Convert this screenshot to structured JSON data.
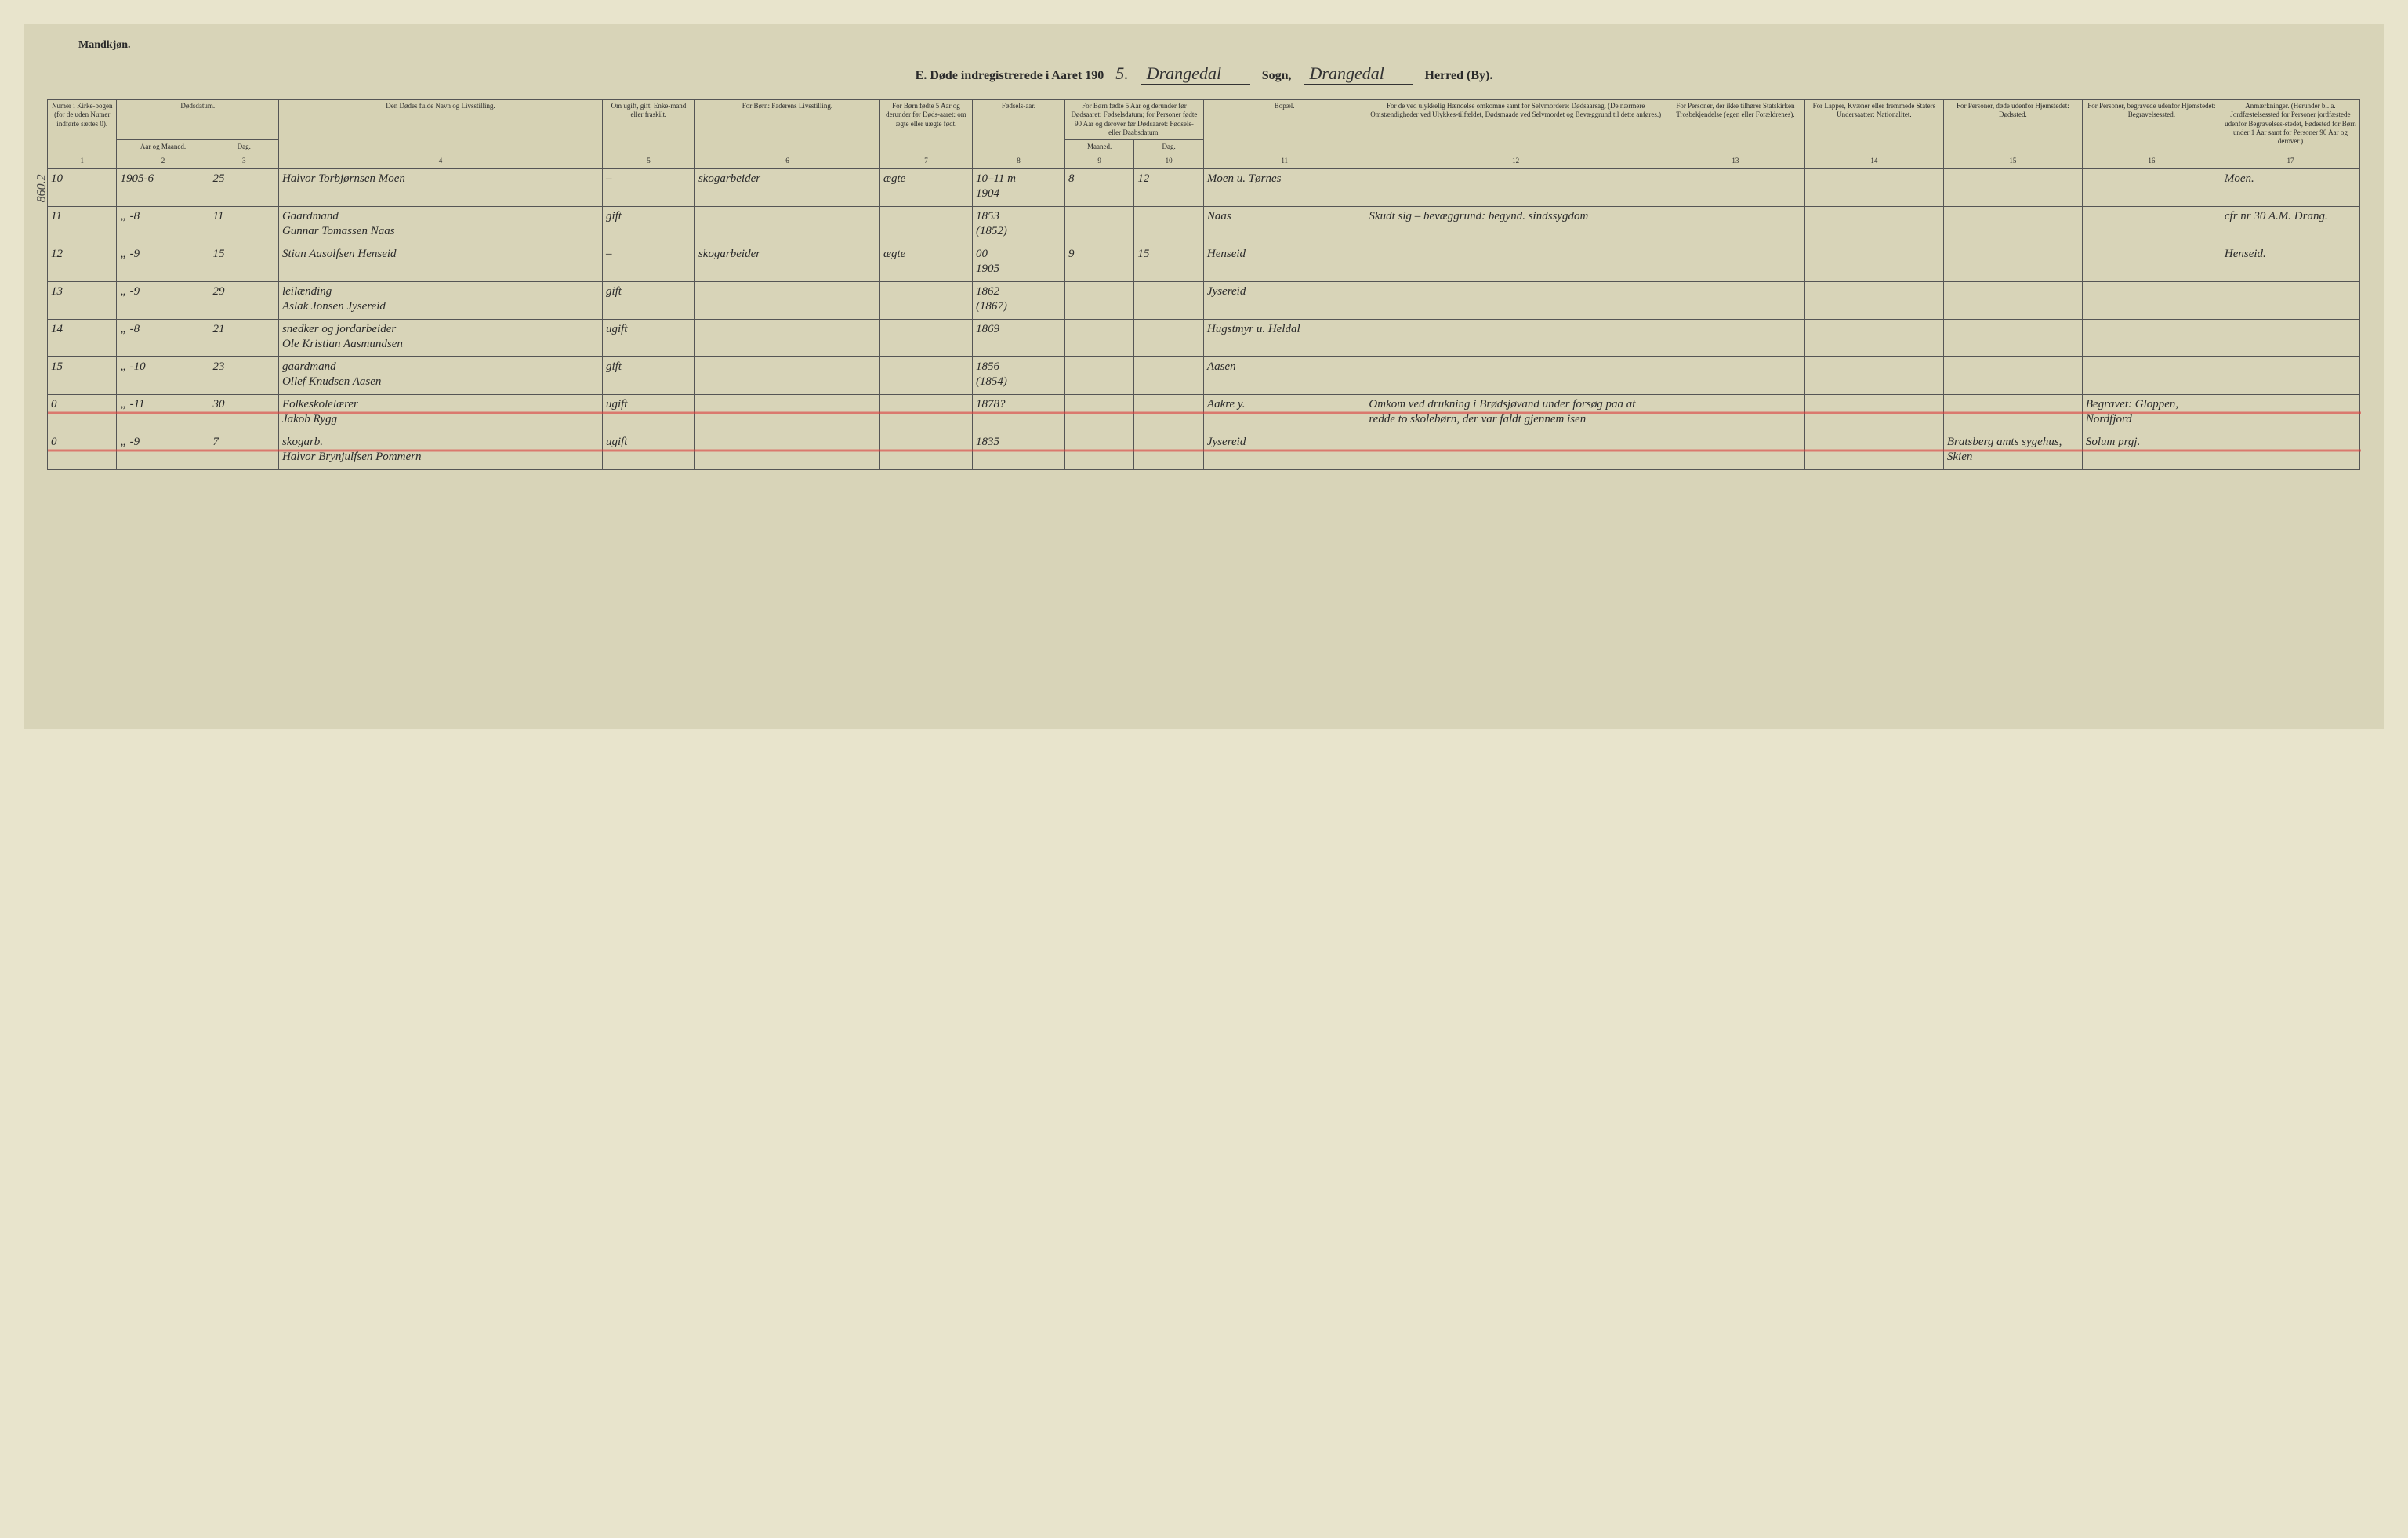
{
  "top": {
    "gender": "Mandkjøn."
  },
  "header": {
    "prefix": "E.  Døde indregistrerede i Aaret 190",
    "year_suffix": "5.",
    "sogn_value": "Drangedal",
    "sogn_label": "Sogn,",
    "herred_value": "Drangedal",
    "herred_label": "Herred (By)."
  },
  "margin_id": "860.2",
  "columns": {
    "c1": "Numer i Kirke-bogen (for de uden Numer indførte sættes 0).",
    "c2": "Dødsdatum.",
    "c2a": "Aar og Maaned.",
    "c2b": "Dag.",
    "c4": "Den Dødes fulde Navn og Livsstilling.",
    "c5": "Om ugift, gift, Enke-mand eller fraskilt.",
    "c6": "For Børn:\nFaderens Livsstilling.",
    "c7": "For Børn fødte 5 Aar og derunder før Døds-aaret: om ægte eller uægte født.",
    "c8": "Fødsels-aar.",
    "c9_10": "For Børn fødte 5 Aar og derunder før Dødsaaret: Fødselsdatum; for Personer fødte 90 Aar og derover før Dødsaaret: Fødsels- eller Daabsdatum.",
    "c9": "Maaned.",
    "c10": "Dag.",
    "c11": "Bopæl.",
    "c12": "For de ved ulykkelig Hændelse omkomne samt for Selvmordere: Dødsaarsag. (De nærmere Omstændigheder ved Ulykkes-tilfældet, Dødsmaade ved Selvmordet og Bevæggrund til dette anføres.)",
    "c13": "For Personer, der ikke tilhører Statskirken Trosbekjendelse (egen eller Forældrenes).",
    "c14": "For Lapper, Kvæner eller fremmede Staters Undersaatter: Nationalitet.",
    "c15": "For Personer, døde udenfor Hjemstedet: Dødssted.",
    "c16": "For Personer, begravede udenfor Hjemstedet: Begravelsessted.",
    "c17": "Anmærkninger. (Herunder bl. a. Jordfæstelsessted for Personer jordfæstede udenfor Begravelses-stedet, Fødested for Børn under 1 Aar samt for Personer 90 Aar og derover.)"
  },
  "col_nums": [
    "1",
    "2",
    "3",
    "4",
    "5",
    "6",
    "7",
    "8",
    "9",
    "10",
    "11",
    "12",
    "13",
    "14",
    "15",
    "16",
    "17"
  ],
  "rows": [
    {
      "num": "10",
      "ym": "1905-6",
      "day": "25",
      "name": "Halvor Torbjørnsen Moen",
      "status": "–",
      "father": "skogarbeider",
      "legit": "ægte",
      "birth": "1904",
      "bm": "8",
      "bd": "12",
      "marginal_top": "10–11 m",
      "resid": "Moen u. Tørnes",
      "cause": "",
      "c13": "",
      "c14": "",
      "c15": "",
      "c16": "",
      "anm": "Moen."
    },
    {
      "num": "11",
      "ym": "„ -8",
      "day": "11",
      "name": "Gaardmand\nGunnar Tomassen Naas",
      "status": "gift",
      "father": "",
      "legit": "",
      "birth": "1853\n(1852)",
      "bm": "",
      "bd": "",
      "resid": "Naas",
      "cause": "Skudt sig – bevæggrund: begynd. sindssygdom",
      "c13": "",
      "c14": "",
      "c15": "",
      "c16": "",
      "anm": "cfr nr 30 A.M. Drang."
    },
    {
      "num": "12",
      "ym": "„ -9",
      "day": "15",
      "name": "Stian Aasolfsen Henseid",
      "status": "–",
      "father": "skogarbeider",
      "legit": "ægte",
      "birth": "1905",
      "bm": "9",
      "bd": "15",
      "marginal_top": "00",
      "resid": "Henseid",
      "cause": "",
      "c13": "",
      "c14": "",
      "c15": "",
      "c16": "",
      "anm": "Henseid."
    },
    {
      "num": "13",
      "ym": "„ -9",
      "day": "29",
      "name": "leilænding\nAslak Jonsen Jysereid",
      "status": "gift",
      "father": "",
      "legit": "",
      "birth": "1862\n(1867)",
      "bm": "",
      "bd": "",
      "resid": "Jysereid",
      "cause": "",
      "c13": "",
      "c14": "",
      "c15": "",
      "c16": "",
      "anm": ""
    },
    {
      "num": "14",
      "ym": "„ -8",
      "day": "21",
      "name": "snedker og jordarbeider\nOle Kristian Aasmundsen",
      "status": "ugift",
      "father": "",
      "legit": "",
      "birth": "1869",
      "bm": "",
      "bd": "",
      "resid": "Hugstmyr u. Heldal",
      "cause": "",
      "c13": "",
      "c14": "",
      "c15": "",
      "c16": "",
      "anm": ""
    },
    {
      "num": "15",
      "ym": "„ -10",
      "day": "23",
      "name": "gaardmand\nOllef Knudsen Aasen",
      "status": "gift",
      "father": "",
      "legit": "",
      "birth": "1856\n(1854)",
      "bm": "",
      "bd": "",
      "resid": "Aasen",
      "cause": "",
      "c13": "",
      "c14": "",
      "c15": "",
      "c16": "",
      "anm": ""
    },
    {
      "num": "0",
      "ym": "„ -11",
      "day": "30",
      "name": "Folkeskolelærer\nJakob Rygg",
      "status": "ugift",
      "father": "",
      "legit": "",
      "birth": "1878?",
      "bm": "",
      "bd": "",
      "resid": "Aakre y.",
      "cause": "Omkom ved drukning i Brødsjøvand under forsøg paa at redde to skolebørn, der var faldt gjennem isen",
      "c13": "",
      "c14": "",
      "c15": "",
      "c16": "Begravet: Gloppen, Nordfjord",
      "anm": "",
      "struck": true
    },
    {
      "num": "0",
      "ym": "„ -9",
      "day": "7",
      "name": "skogarb.\nHalvor Brynjulfsen Pommern",
      "status": "ugift",
      "father": "",
      "legit": "",
      "birth": "1835",
      "bm": "",
      "bd": "",
      "resid": "Jysereid",
      "cause": "",
      "c13": "",
      "c14": "",
      "c15": "Bratsberg amts sygehus, Skien",
      "c16": "Solum prgj.",
      "anm": "",
      "struck": true
    }
  ],
  "colors": {
    "page_bg": "#d8d4b8",
    "border": "#555555",
    "ink": "#2a2a2a",
    "red_strike": "rgba(220,60,60,0.6)"
  },
  "layout": {
    "col_widths_pct": [
      3,
      4,
      3,
      14,
      4,
      8,
      4,
      4,
      3,
      3,
      7,
      13,
      6,
      6,
      6,
      6,
      6
    ]
  }
}
